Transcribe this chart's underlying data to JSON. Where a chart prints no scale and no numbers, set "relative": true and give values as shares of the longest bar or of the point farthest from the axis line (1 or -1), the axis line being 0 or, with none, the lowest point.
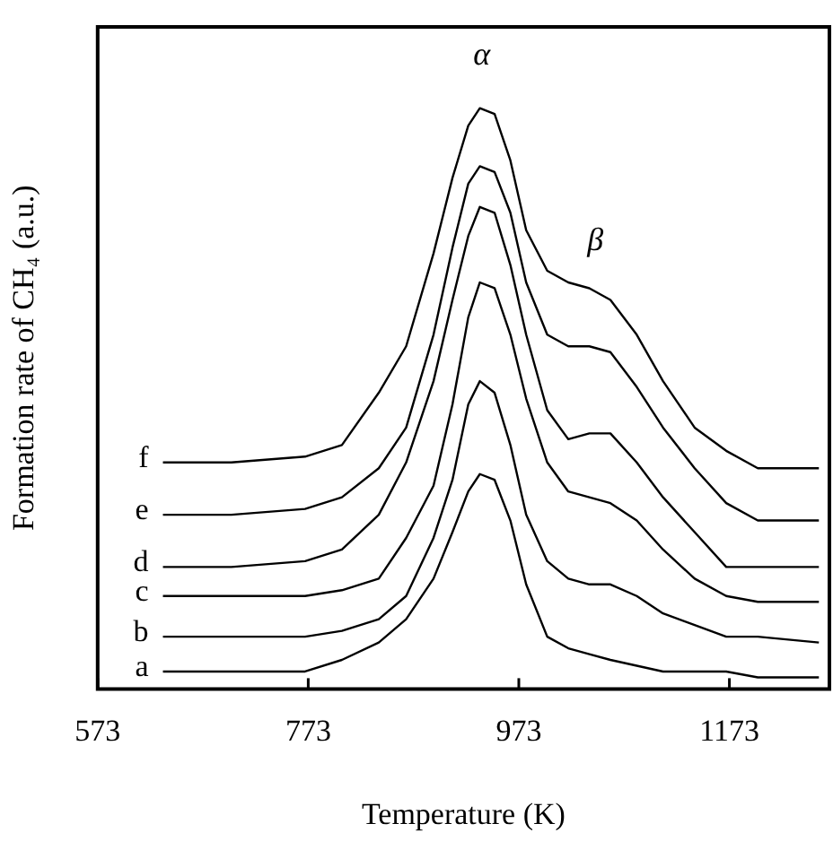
{
  "chart_data": {
    "type": "line",
    "xlabel": "Temperature (K)",
    "ylabel": "Formation rate of CH₄ (a.u.)",
    "relative": true,
    "grid": false,
    "legend": false,
    "marker": "none",
    "line_style": "solid",
    "xlim": [
      573,
      1268
    ],
    "xticks": [
      573,
      773,
      973,
      1173
    ],
    "x": [
      635,
      700,
      770,
      805,
      840,
      866,
      892,
      910,
      925,
      936,
      950,
      965,
      980,
      1000,
      1020,
      1040,
      1060,
      1085,
      1110,
      1140,
      1170,
      1200,
      1258
    ],
    "series": [
      {
        "name": "a",
        "color": "#000000",
        "values": [
          0.03,
          0.03,
          0.03,
          0.05,
          0.08,
          0.12,
          0.19,
          0.27,
          0.34,
          0.37,
          0.36,
          0.29,
          0.18,
          0.09,
          0.07,
          0.06,
          0.05,
          0.04,
          0.03,
          0.03,
          0.03,
          0.02,
          0.02
        ]
      },
      {
        "name": "b",
        "color": "#000000",
        "values": [
          0.09,
          0.09,
          0.09,
          0.1,
          0.12,
          0.16,
          0.26,
          0.36,
          0.49,
          0.53,
          0.51,
          0.42,
          0.3,
          0.22,
          0.19,
          0.18,
          0.18,
          0.16,
          0.13,
          0.11,
          0.09,
          0.09,
          0.08
        ]
      },
      {
        "name": "c",
        "color": "#000000",
        "values": [
          0.16,
          0.16,
          0.16,
          0.17,
          0.19,
          0.26,
          0.35,
          0.49,
          0.64,
          0.7,
          0.69,
          0.61,
          0.5,
          0.39,
          0.34,
          0.33,
          0.32,
          0.29,
          0.24,
          0.19,
          0.16,
          0.15,
          0.15
        ]
      },
      {
        "name": "d",
        "color": "#000000",
        "values": [
          0.21,
          0.21,
          0.22,
          0.24,
          0.3,
          0.39,
          0.53,
          0.67,
          0.78,
          0.83,
          0.82,
          0.73,
          0.61,
          0.48,
          0.43,
          0.44,
          0.44,
          0.39,
          0.33,
          0.27,
          0.21,
          0.21,
          0.21
        ]
      },
      {
        "name": "e",
        "color": "#000000",
        "values": [
          0.3,
          0.3,
          0.31,
          0.33,
          0.38,
          0.45,
          0.61,
          0.76,
          0.87,
          0.9,
          0.89,
          0.82,
          0.7,
          0.61,
          0.59,
          0.59,
          0.58,
          0.52,
          0.45,
          0.38,
          0.32,
          0.29,
          0.29
        ]
      },
      {
        "name": "f",
        "color": "#000000",
        "values": [
          0.39,
          0.39,
          0.4,
          0.42,
          0.51,
          0.59,
          0.75,
          0.88,
          0.97,
          1,
          0.99,
          0.91,
          0.79,
          0.72,
          0.7,
          0.69,
          0.67,
          0.61,
          0.53,
          0.45,
          0.41,
          0.38,
          0.38
        ]
      }
    ],
    "annotations": [
      "α",
      "β"
    ]
  }
}
